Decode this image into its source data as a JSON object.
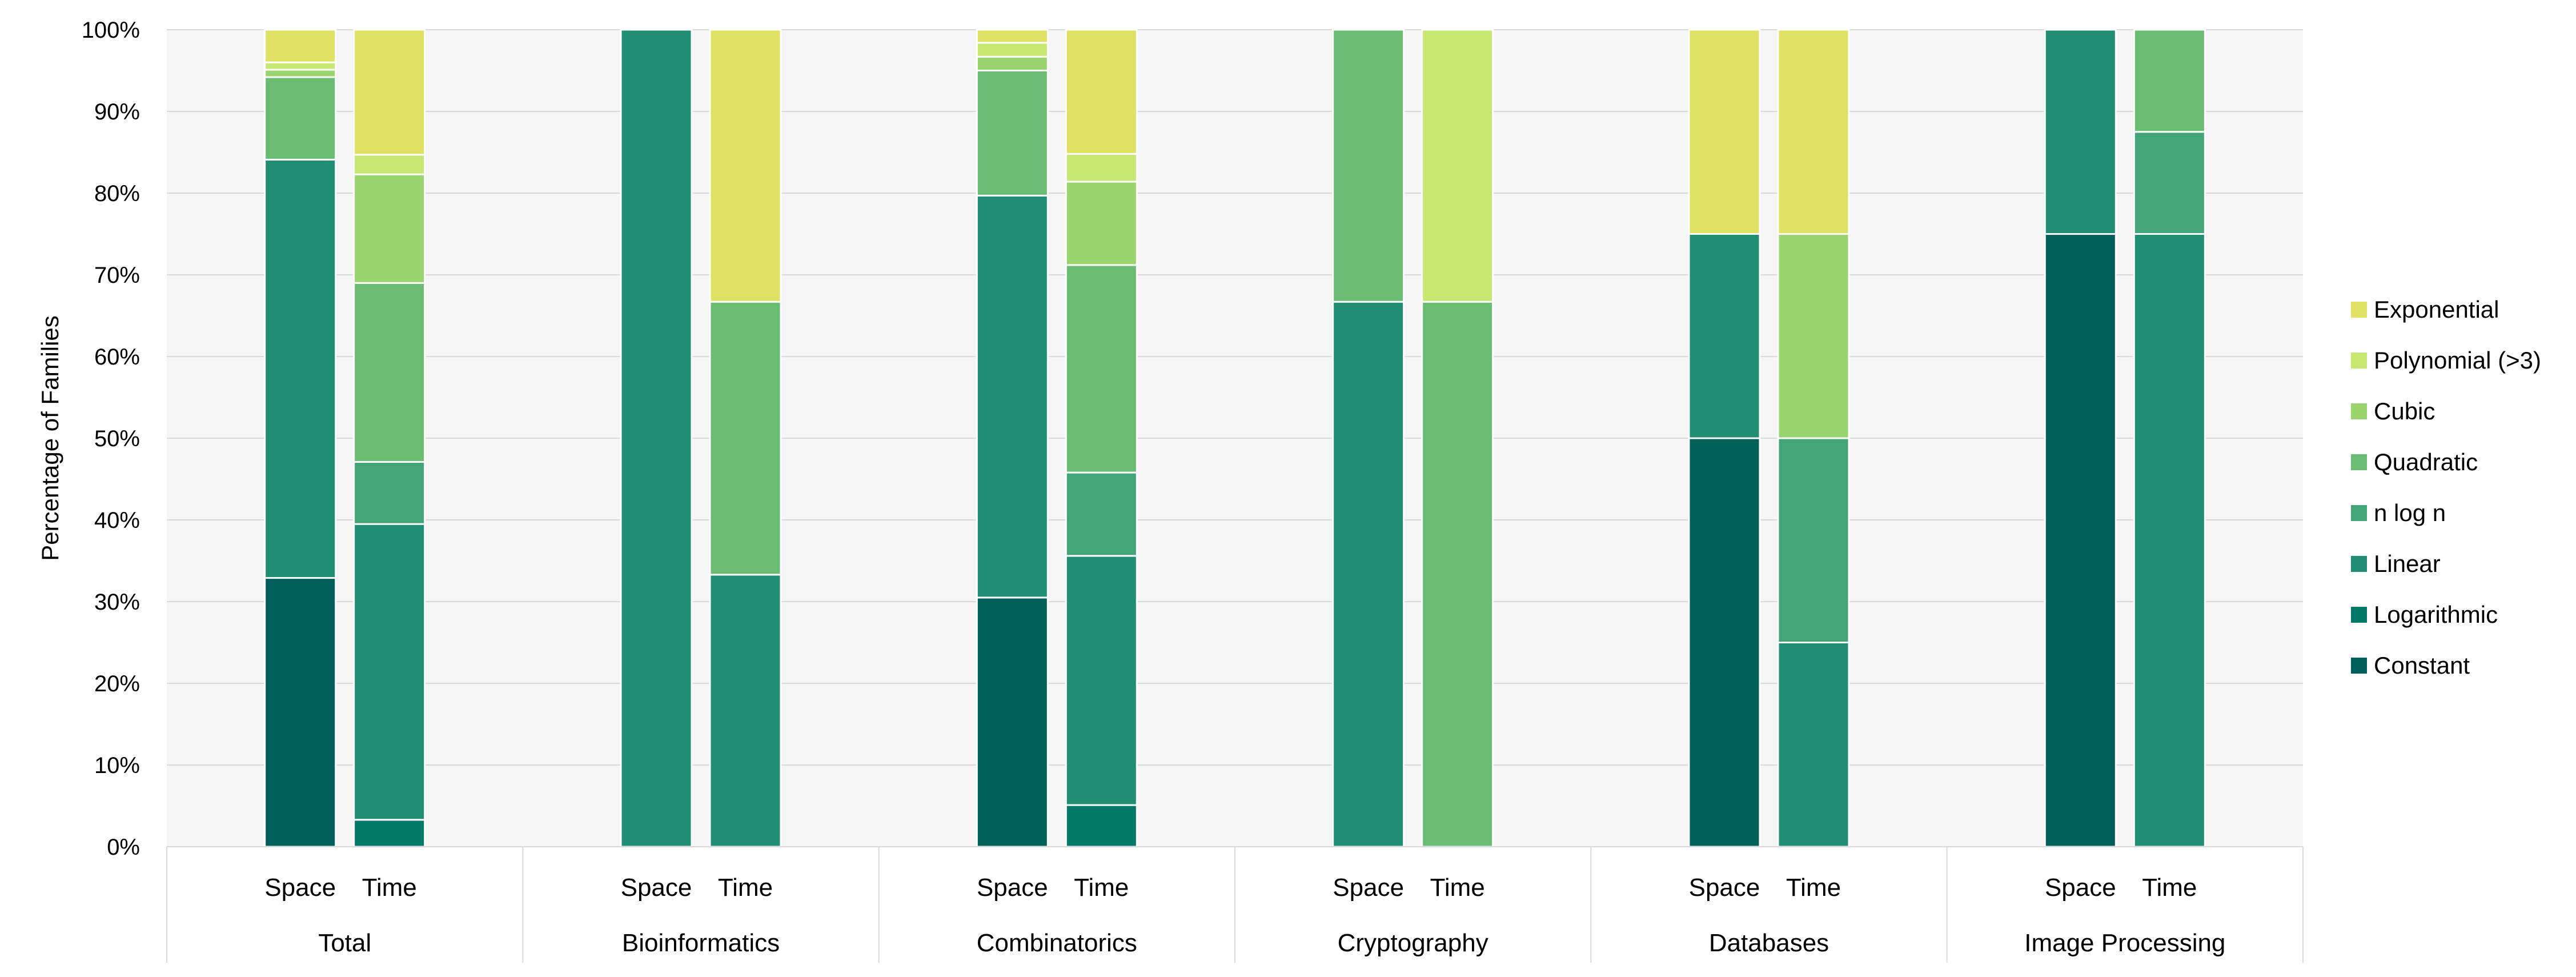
{
  "chart_data": {
    "type": "bar",
    "stacked": true,
    "normalized": true,
    "title": "",
    "xlabel": "",
    "ylabel": "Percentage of Families",
    "ylim": [
      0,
      100
    ],
    "ytick_values": [
      0,
      10,
      20,
      30,
      40,
      50,
      60,
      70,
      80,
      90,
      100
    ],
    "ytick_labels": [
      "0%",
      "10%",
      "20%",
      "30%",
      "40%",
      "50%",
      "60%",
      "70%",
      "80%",
      "90%",
      "100%"
    ],
    "grid": "horizontal",
    "legend_position": "right",
    "groups": [
      "Total",
      "Bioinformatics",
      "Combinatorics",
      "Cryptography",
      "Databases",
      "Image Processing"
    ],
    "subcategories": [
      "Space",
      "Time"
    ],
    "series": [
      {
        "name": "Constant",
        "color": "#005F5A",
        "values": [
          [
            32.9,
            0
          ],
          [
            0,
            0
          ],
          [
            30.5,
            0
          ],
          [
            0,
            0
          ],
          [
            50,
            0
          ],
          [
            75,
            0
          ]
        ]
      },
      {
        "name": "Logarithmic",
        "color": "#00796B",
        "values": [
          [
            0,
            3.3
          ],
          [
            0,
            0
          ],
          [
            0,
            5.1
          ],
          [
            0,
            0
          ],
          [
            0,
            0
          ],
          [
            0,
            0
          ]
        ]
      },
      {
        "name": "Linear",
        "color": "#218D73",
        "values": [
          [
            51.2,
            36.2
          ],
          [
            100,
            33.3
          ],
          [
            49.2,
            30.5
          ],
          [
            66.7,
            0
          ],
          [
            25,
            25
          ],
          [
            25,
            75
          ]
        ]
      },
      {
        "name": "n log n",
        "color": "#43A577",
        "values": [
          [
            0,
            7.6
          ],
          [
            0,
            0
          ],
          [
            0,
            10.2
          ],
          [
            0,
            0
          ],
          [
            0,
            25
          ],
          [
            0,
            12.5
          ]
        ]
      },
      {
        "name": "Quadratic",
        "color": "#6ABC73",
        "values": [
          [
            10.1,
            21.9
          ],
          [
            0,
            33.4
          ],
          [
            15.3,
            25.4
          ],
          [
            33.3,
            66.7
          ],
          [
            0,
            0
          ],
          [
            0,
            12.5
          ]
        ]
      },
      {
        "name": "Cubic",
        "color": "#9AD46E",
        "values": [
          [
            0.9,
            13.3
          ],
          [
            0,
            0
          ],
          [
            1.7,
            10.2
          ],
          [
            0,
            0
          ],
          [
            0,
            25
          ],
          [
            0,
            0
          ]
        ]
      },
      {
        "name": "Polynomial (>3)",
        "color": "#C6E772",
        "values": [
          [
            0.9,
            2.4
          ],
          [
            0,
            0
          ],
          [
            1.7,
            3.4
          ],
          [
            0,
            33.3
          ],
          [
            0,
            0
          ],
          [
            0,
            0
          ]
        ]
      },
      {
        "name": "Exponential",
        "color": "#E0E064",
        "values": [
          [
            4.0,
            15.3
          ],
          [
            0,
            33.3
          ],
          [
            1.6,
            15.2
          ],
          [
            0,
            0
          ],
          [
            25,
            25
          ],
          [
            0,
            0
          ]
        ]
      }
    ]
  }
}
